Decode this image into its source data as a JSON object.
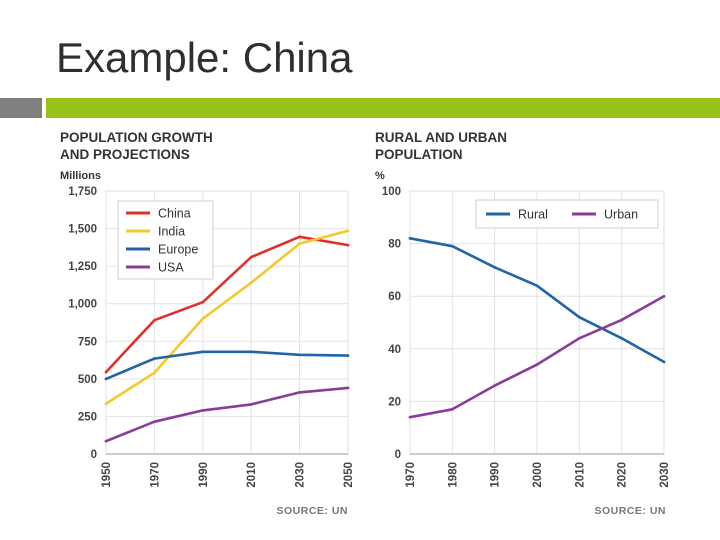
{
  "slide": {
    "title": "Example: China"
  },
  "colors": {
    "accent_green": "#99c21c",
    "accent_gray": "#7f7f7f"
  },
  "chart_data": [
    {
      "type": "line",
      "title": "POPULATION GROWTH AND PROJECTIONS",
      "title_lines": [
        "POPULATION GROWTH",
        "AND PROJECTIONS"
      ],
      "ylabel": "Millions",
      "ylim": [
        0,
        1750
      ],
      "yticks": [
        0,
        250,
        500,
        750,
        1000,
        1250,
        1500,
        1750
      ],
      "ytick_labels": [
        "0",
        "250",
        "500",
        "750",
        "1,000",
        "1,250",
        "1,500",
        "1,750"
      ],
      "xlim": [
        1950,
        2050
      ],
      "xticks": [
        1950,
        1970,
        1990,
        2010,
        2030,
        2050
      ],
      "xtick_labels": [
        "1950",
        "1970",
        "1990",
        "2010",
        "2030",
        "2050"
      ],
      "x": [
        1950,
        1970,
        1990,
        2010,
        2030,
        2050
      ],
      "series": [
        {
          "name": "China",
          "color": "#e0302a",
          "values": [
            545,
            890,
            1010,
            1310,
            1445,
            1390
          ]
        },
        {
          "name": "India",
          "color": "#f5c82c",
          "values": [
            335,
            540,
            900,
            1140,
            1400,
            1485
          ]
        },
        {
          "name": "Europe",
          "color": "#1f66a6",
          "values": [
            500,
            635,
            680,
            680,
            660,
            655
          ]
        },
        {
          "name": "USA",
          "color": "#8a3c9b",
          "values": [
            85,
            215,
            290,
            330,
            410,
            440
          ]
        }
      ],
      "legend": "top-left",
      "grid": true,
      "source": "SOURCE: UN"
    },
    {
      "type": "line",
      "title": "RURAL AND URBAN POPULATION",
      "title_lines": [
        "RURAL AND URBAN",
        "POPULATION"
      ],
      "ylabel": "%",
      "ylim": [
        0,
        100
      ],
      "yticks": [
        0,
        20,
        40,
        60,
        80,
        100
      ],
      "ytick_labels": [
        "0",
        "20",
        "40",
        "60",
        "80",
        "100"
      ],
      "xlim": [
        1970,
        2030
      ],
      "xticks": [
        1970,
        1980,
        1990,
        2000,
        2010,
        2020,
        2030
      ],
      "xtick_labels": [
        "1970",
        "1980",
        "1990",
        "2000",
        "2010",
        "2020",
        "2030"
      ],
      "x": [
        1970,
        1980,
        1990,
        2000,
        2010,
        2020,
        2030
      ],
      "series": [
        {
          "name": "Rural",
          "color": "#1f66a6",
          "values": [
            82,
            79,
            71,
            64,
            52,
            44,
            35
          ]
        },
        {
          "name": "Urban",
          "color": "#8a3c9b",
          "values": [
            14,
            17,
            26,
            34,
            44,
            51,
            60
          ]
        }
      ],
      "legend": "top-right",
      "grid": true,
      "source": "SOURCE: UN"
    }
  ]
}
